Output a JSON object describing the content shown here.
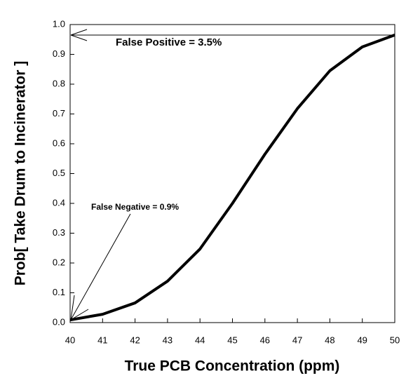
{
  "chart_data": {
    "type": "line",
    "x_label": "True PCB Concentration (ppm)",
    "y_label": "Prob[ Take Drum to Incinerator ]",
    "x": [
      40,
      41,
      42,
      43,
      44,
      45,
      46,
      47,
      48,
      49,
      50
    ],
    "values": [
      0.009,
      0.028,
      0.066,
      0.139,
      0.247,
      0.4,
      0.565,
      0.718,
      0.845,
      0.925,
      0.965
    ],
    "color": "#000000",
    "xlim": [
      40,
      50
    ],
    "xticks": [
      40,
      41,
      42,
      43,
      44,
      45,
      46,
      47,
      48,
      49,
      50
    ],
    "ylim": [
      0,
      1
    ],
    "yticks": [
      {
        "value": 0,
        "label": "0.0"
      },
      0.1,
      0.2,
      0.3,
      0.4,
      0.5,
      0.6,
      0.7,
      0.8,
      0.9,
      {
        "value": 1,
        "label": "1.0"
      }
    ],
    "annotations": [
      {
        "text": "False Positive = 3.5%"
      },
      {
        "text": "False Negative = 0.9%"
      }
    ]
  }
}
